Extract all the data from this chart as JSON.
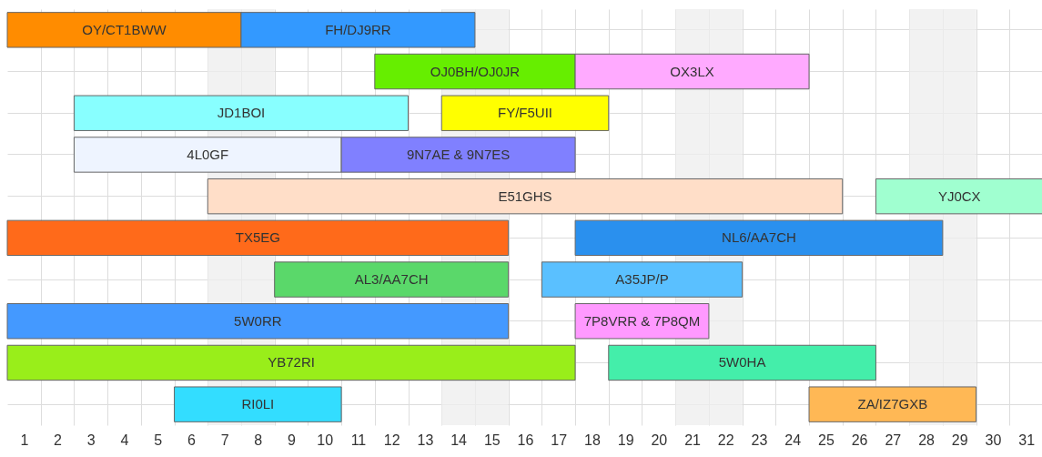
{
  "chart_data": {
    "type": "bar",
    "orientation": "horizontal",
    "categories": [
      null,
      null,
      null,
      null,
      null,
      null,
      null,
      null,
      null,
      null
    ],
    "xlim": [
      0.5,
      31.5
    ],
    "xticks": [
      1,
      2,
      3,
      4,
      5,
      6,
      7,
      8,
      9,
      10,
      11,
      12,
      13,
      14,
      15,
      16,
      17,
      18,
      19,
      20,
      21,
      22,
      23,
      24,
      25,
      26,
      27,
      28,
      29,
      30,
      31
    ],
    "grid": true,
    "tick_labels": "x",
    "bands": [
      {
        "axis": "x",
        "from": 6.5,
        "to": 8.5,
        "color": "#eeeeee"
      },
      {
        "axis": "x",
        "from": 13.5,
        "to": 15.5,
        "color": "#eeeeee"
      },
      {
        "axis": "x",
        "from": 20.5,
        "to": 22.5,
        "color": "#eeeeee"
      },
      {
        "axis": "x",
        "from": 27.5,
        "to": 29.5,
        "color": "#eeeeee"
      }
    ],
    "series": [
      {
        "name": "OY/CT1BWW",
        "color": "#ff8c00",
        "base": [
          0.5,
          null,
          null,
          null,
          null,
          null,
          null,
          null,
          null,
          null
        ],
        "values": [
          7,
          null,
          null,
          null,
          null,
          null,
          null,
          null,
          null,
          null
        ]
      },
      {
        "name": "FH/DJ9RR",
        "color": "#3399ff",
        "base": [
          7.5,
          null,
          null,
          null,
          null,
          null,
          null,
          null,
          null,
          null
        ],
        "values": [
          7,
          null,
          null,
          null,
          null,
          null,
          null,
          null,
          null,
          null
        ]
      },
      {
        "name": "OJ0BH/OJ0JR",
        "color": "#66ee00",
        "base": [
          null,
          11.5,
          null,
          null,
          null,
          null,
          null,
          null,
          null,
          null
        ],
        "values": [
          null,
          6,
          null,
          null,
          null,
          null,
          null,
          null,
          null,
          null
        ]
      },
      {
        "name": "OX3LX",
        "color": "#ffaaff",
        "base": [
          null,
          17.5,
          null,
          null,
          null,
          null,
          null,
          null,
          null,
          null
        ],
        "values": [
          null,
          7,
          null,
          null,
          null,
          null,
          null,
          null,
          null,
          null
        ]
      },
      {
        "name": "JD1BOI",
        "color": "#88ffff",
        "base": [
          null,
          null,
          2.5,
          null,
          null,
          null,
          null,
          null,
          null,
          null
        ],
        "values": [
          null,
          null,
          10,
          null,
          null,
          null,
          null,
          null,
          null,
          null
        ]
      },
      {
        "name": "FY/F5UII",
        "color": "#ffff00",
        "base": [
          null,
          null,
          13.5,
          null,
          null,
          null,
          null,
          null,
          null,
          null
        ],
        "values": [
          null,
          null,
          5,
          null,
          null,
          null,
          null,
          null,
          null,
          null
        ]
      },
      {
        "name": "4L0GF",
        "color": "#eef4ff",
        "base": [
          null,
          null,
          null,
          2.5,
          null,
          null,
          null,
          null,
          null,
          null
        ],
        "values": [
          null,
          null,
          null,
          8,
          null,
          null,
          null,
          null,
          null,
          null
        ]
      },
      {
        "name": "9N7AE & 9N7ES",
        "color": "#8080ff",
        "base": [
          null,
          null,
          null,
          10.5,
          null,
          null,
          null,
          null,
          null,
          null
        ],
        "values": [
          null,
          null,
          null,
          7,
          null,
          null,
          null,
          null,
          null,
          null
        ]
      },
      {
        "name": "E51GHS",
        "color": "#ffdec8",
        "base": [
          null,
          null,
          null,
          null,
          6.5,
          null,
          null,
          null,
          null,
          null
        ],
        "values": [
          null,
          null,
          null,
          null,
          19,
          null,
          null,
          null,
          null,
          null
        ]
      },
      {
        "name": "YJ0CX",
        "color": "#a0ffd0",
        "base": [
          null,
          null,
          null,
          null,
          26.5,
          null,
          null,
          null,
          null,
          null
        ],
        "values": [
          null,
          null,
          null,
          null,
          5,
          null,
          null,
          null,
          null,
          null
        ]
      },
      {
        "name": "TX5EG",
        "color": "#ff6a1a",
        "base": [
          null,
          null,
          null,
          null,
          null,
          0.5,
          null,
          null,
          null,
          null
        ],
        "values": [
          null,
          null,
          null,
          null,
          null,
          15,
          null,
          null,
          null,
          null
        ]
      },
      {
        "name": "NL6/AA7CH",
        "color": "#2a90ee",
        "base": [
          null,
          null,
          null,
          null,
          null,
          17.5,
          null,
          null,
          null,
          null
        ],
        "values": [
          null,
          null,
          null,
          null,
          null,
          11,
          null,
          null,
          null,
          null
        ]
      },
      {
        "name": "AL3/AA7CH",
        "color": "#5ad86a",
        "base": [
          null,
          null,
          null,
          null,
          null,
          null,
          8.5,
          null,
          null,
          null
        ],
        "values": [
          null,
          null,
          null,
          null,
          null,
          null,
          7,
          null,
          null,
          null
        ]
      },
      {
        "name": "A35JP/P",
        "color": "#5ac0ff",
        "base": [
          null,
          null,
          null,
          null,
          null,
          null,
          16.5,
          null,
          null,
          null
        ],
        "values": [
          null,
          null,
          null,
          null,
          null,
          null,
          6,
          null,
          null,
          null
        ]
      },
      {
        "name": "5W0RR",
        "color": "#4499ff",
        "base": [
          null,
          null,
          null,
          null,
          null,
          null,
          null,
          0.5,
          null,
          null
        ],
        "values": [
          null,
          null,
          null,
          null,
          null,
          null,
          null,
          15,
          null,
          null
        ]
      },
      {
        "name": "7P8VRR & 7P8QM",
        "color": "#ff99ff",
        "base": [
          null,
          null,
          null,
          null,
          null,
          null,
          null,
          17.5,
          null,
          null
        ],
        "values": [
          null,
          null,
          null,
          null,
          null,
          null,
          null,
          4,
          null,
          null
        ]
      },
      {
        "name": "YB72RI",
        "color": "#99ee1a",
        "base": [
          null,
          null,
          null,
          null,
          null,
          null,
          null,
          null,
          0.5,
          null
        ],
        "values": [
          null,
          null,
          null,
          null,
          null,
          null,
          null,
          null,
          17,
          null
        ]
      },
      {
        "name": "5W0HA",
        "color": "#44eeaa",
        "base": [
          null,
          null,
          null,
          null,
          null,
          null,
          null,
          null,
          18.5,
          null
        ],
        "values": [
          null,
          null,
          null,
          null,
          null,
          null,
          null,
          null,
          8,
          null
        ]
      },
      {
        "name": "RI0LI",
        "color": "#33ddff",
        "base": [
          null,
          null,
          null,
          null,
          null,
          null,
          null,
          null,
          null,
          5.5
        ],
        "values": [
          null,
          null,
          null,
          null,
          null,
          null,
          null,
          null,
          null,
          5
        ]
      },
      {
        "name": "ZA/IZ7GXB",
        "color": "#ffb855",
        "base": [
          null,
          null,
          null,
          null,
          null,
          null,
          null,
          null,
          null,
          24.5
        ],
        "values": [
          null,
          null,
          null,
          null,
          null,
          null,
          null,
          null,
          null,
          5
        ]
      }
    ]
  }
}
